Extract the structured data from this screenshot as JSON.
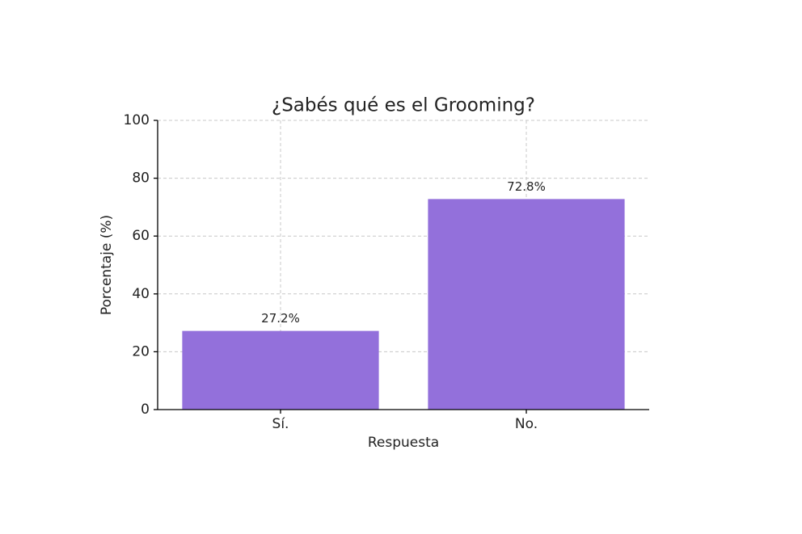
{
  "chart_data": {
    "type": "bar",
    "title": "¿Sabés qué es el Grooming?",
    "x_label": "Respuesta",
    "y_label": "Porcentaje (%)",
    "categories": [
      "Sí.",
      "No."
    ],
    "values": [
      27.2,
      72.8
    ],
    "value_labels": [
      "27.2%",
      "72.8%"
    ],
    "color": "#9370db",
    "ylim": [
      0,
      100
    ],
    "yticks": [
      0,
      20,
      40,
      60,
      80,
      100
    ],
    "grid": true
  }
}
